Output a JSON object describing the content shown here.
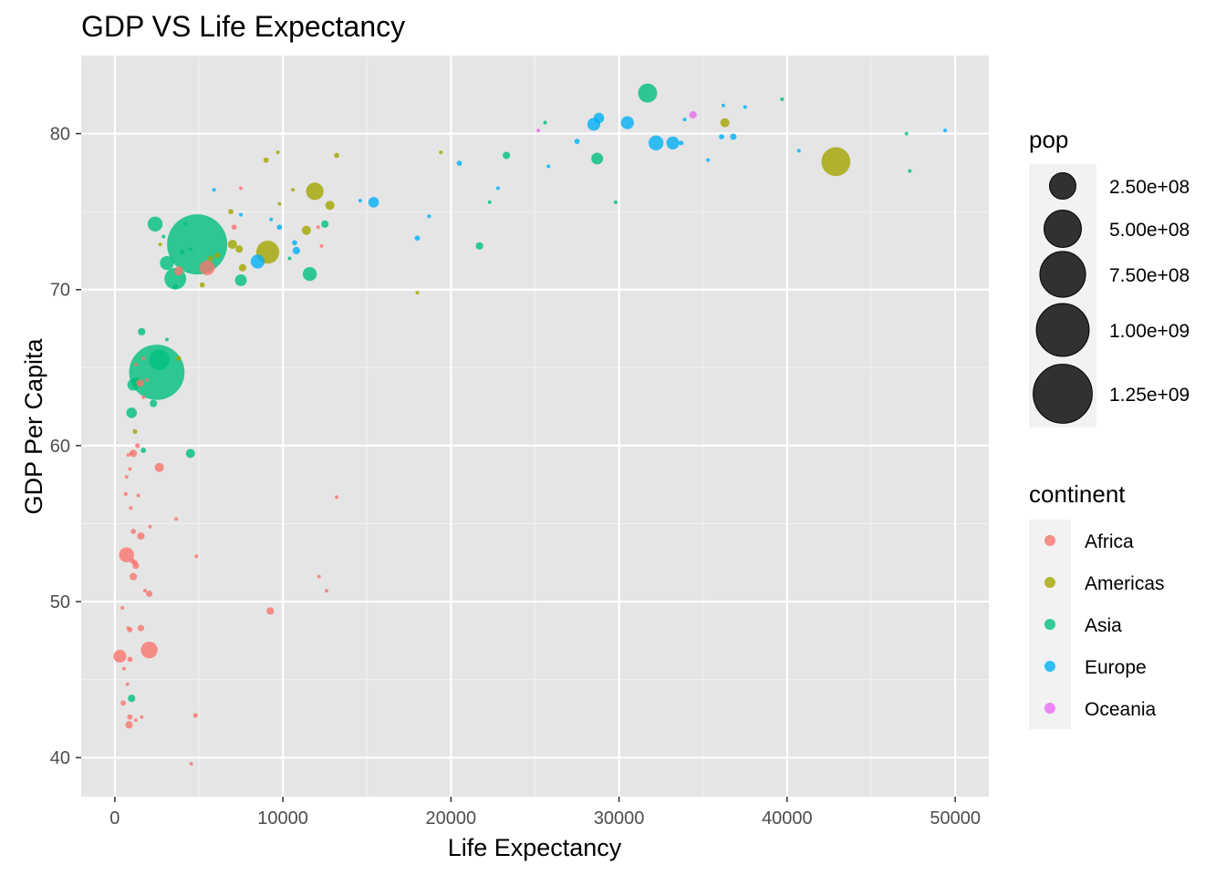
{
  "chart_data": {
    "type": "scatter",
    "title": "GDP VS Life Expectancy",
    "xlabel": "Life Expectancy",
    "ylabel": "GDP Per Capita",
    "xlim": [
      -2000,
      52000
    ],
    "ylim": [
      37.5,
      85
    ],
    "x_ticks": [
      0,
      10000,
      20000,
      30000,
      40000,
      50000
    ],
    "x_tick_labels": [
      "0",
      "10000",
      "20000",
      "30000",
      "40000",
      "50000"
    ],
    "y_ticks": [
      40,
      50,
      60,
      70,
      80
    ],
    "y_tick_labels": [
      "40",
      "50",
      "60",
      "70",
      "80"
    ],
    "grid": true,
    "background": "#e5e5e5",
    "point_opacity": 0.8,
    "legend_position": "right",
    "size_legend": {
      "title": "pop",
      "values": [
        250000000,
        500000000,
        750000000,
        1000000000,
        1250000000
      ],
      "labels": [
        "2.50e+08",
        "5.00e+08",
        "7.50e+08",
        "1.00e+09",
        "1.25e+09"
      ]
    },
    "color_legend": {
      "title": "continent",
      "entries": [
        {
          "name": "Africa",
          "color": "#F8766D"
        },
        {
          "name": "Americas",
          "color": "#A3A500"
        },
        {
          "name": "Asia",
          "color": "#00BF7D"
        },
        {
          "name": "Europe",
          "color": "#00B0F6"
        },
        {
          "name": "Oceania",
          "color": "#E76BF3"
        }
      ]
    },
    "series": [
      {
        "name": "Africa",
        "points": [
          [
            1250,
            65.2
          ],
          [
            1700,
            65.6
          ],
          [
            1900,
            64.2
          ],
          [
            1500,
            64.0
          ],
          [
            1700,
            63.1
          ],
          [
            3800,
            71.2
          ],
          [
            5500,
            71.4
          ],
          [
            7100,
            74.0
          ],
          [
            7500,
            76.5
          ],
          [
            12100,
            74.0
          ],
          [
            12300,
            72.8
          ],
          [
            1000,
            59.5
          ],
          [
            1350,
            60.0
          ],
          [
            800,
            59.4
          ],
          [
            1100,
            59.5
          ],
          [
            700,
            58.0
          ],
          [
            900,
            58.5
          ],
          [
            2650,
            58.6
          ],
          [
            650,
            56.9
          ],
          [
            1400,
            56.8
          ],
          [
            950,
            56.0
          ],
          [
            3650,
            55.3
          ],
          [
            13200,
            56.7
          ],
          [
            1100,
            54.5
          ],
          [
            1550,
            54.2
          ],
          [
            2100,
            54.8
          ],
          [
            700,
            53.0
          ],
          [
            1050,
            52.6
          ],
          [
            1200,
            52.5
          ],
          [
            1250,
            52.3
          ],
          [
            4850,
            52.9
          ],
          [
            1100,
            51.6
          ],
          [
            1800,
            50.7
          ],
          [
            2050,
            50.5
          ],
          [
            12150,
            51.6
          ],
          [
            12600,
            50.7
          ],
          [
            9250,
            49.4
          ],
          [
            450,
            49.6
          ],
          [
            800,
            48.3
          ],
          [
            900,
            48.2
          ],
          [
            1550,
            48.3
          ],
          [
            300,
            46.5
          ],
          [
            2050,
            46.9
          ],
          [
            900,
            46.3
          ],
          [
            550,
            45.7
          ],
          [
            750,
            44.7
          ],
          [
            500,
            43.5
          ],
          [
            900,
            42.6
          ],
          [
            1250,
            42.4
          ],
          [
            1600,
            42.6
          ],
          [
            850,
            42.1
          ],
          [
            4800,
            42.7
          ],
          [
            4550,
            39.6
          ]
        ],
        "pop": [
          3000000,
          3000000,
          2000000,
          20000000,
          5000000,
          30000000,
          80000000,
          10000000,
          1000000,
          3000000,
          1000000,
          2000000,
          8000000,
          3000000,
          20000000,
          5000000,
          3000000,
          30000000,
          5000000,
          5000000,
          5000000,
          3000000,
          2000000,
          10000000,
          20000000,
          2000000,
          80000000,
          10000000,
          10000000,
          15000000,
          2000000,
          20000000,
          5000000,
          15000000,
          1000000,
          1000000,
          20000000,
          5000000,
          5000000,
          10000000,
          15000000,
          60000000,
          100000000,
          10000000,
          2000000,
          3000000,
          10000000,
          10000000,
          5000000,
          2000000,
          20000000,
          8000000,
          1000000
        ]
      },
      {
        "name": "Americas",
        "points": [
          [
            9000,
            78.3
          ],
          [
            9700,
            78.8
          ],
          [
            13200,
            78.6
          ],
          [
            11900,
            76.3
          ],
          [
            10600,
            76.4
          ],
          [
            9800,
            75.5
          ],
          [
            12800,
            75.4
          ],
          [
            6900,
            75.0
          ],
          [
            11400,
            73.8
          ],
          [
            2700,
            72.9
          ],
          [
            7000,
            72.9
          ],
          [
            7400,
            72.6
          ],
          [
            9100,
            72.4
          ],
          [
            6100,
            72.2
          ],
          [
            5700,
            72.0
          ],
          [
            7600,
            71.4
          ],
          [
            5200,
            70.3
          ],
          [
            3800,
            65.6
          ],
          [
            1200,
            60.9
          ],
          [
            19400,
            78.8
          ],
          [
            18000,
            69.8
          ],
          [
            36300,
            80.7
          ],
          [
            42900,
            78.2
          ]
        ],
        "pop": [
          10000000,
          3000000,
          10000000,
          110000000,
          3000000,
          3000000,
          30000000,
          10000000,
          30000000,
          3000000,
          30000000,
          20000000,
          190000000,
          10000000,
          10000000,
          20000000,
          10000000,
          8000000,
          8000000,
          3000000,
          1000000,
          30000000,
          300000000
        ]
      },
      {
        "name": "Asia",
        "points": [
          [
            31700,
            82.6
          ],
          [
            39700,
            82.2
          ],
          [
            25600,
            80.7
          ],
          [
            47100,
            80.0
          ],
          [
            47300,
            77.6
          ],
          [
            23300,
            78.6
          ],
          [
            28700,
            78.4
          ],
          [
            29800,
            75.6
          ],
          [
            22300,
            75.6
          ],
          [
            21700,
            72.8
          ],
          [
            12500,
            74.2
          ],
          [
            11600,
            71.0
          ],
          [
            10400,
            72.0
          ],
          [
            2400,
            74.2
          ],
          [
            4200,
            74.2
          ],
          [
            2900,
            73.4
          ],
          [
            4900,
            72.9
          ],
          [
            4500,
            72.6
          ],
          [
            4000,
            72.4
          ],
          [
            3100,
            71.7
          ],
          [
            3600,
            70.7
          ],
          [
            3600,
            70.2
          ],
          [
            7500,
            70.6
          ],
          [
            1600,
            67.3
          ],
          [
            3100,
            66.8
          ],
          [
            2500,
            64.7
          ],
          [
            2650,
            65.5
          ],
          [
            1250,
            64.1
          ],
          [
            1100,
            63.9
          ],
          [
            2300,
            62.7
          ],
          [
            1000,
            62.1
          ],
          [
            1700,
            59.7
          ],
          [
            4500,
            59.5
          ],
          [
            1000,
            43.8
          ]
        ],
        "pop": [
          130000000,
          5000000,
          5000000,
          2000000,
          2000000,
          20000000,
          50000000,
          1000000,
          3000000,
          20000000,
          20000000,
          70000000,
          2000000,
          80000000,
          5000000,
          3000000,
          1300000000,
          3000000,
          8000000,
          70000000,
          170000000,
          10000000,
          50000000,
          20000000,
          3000000,
          1100000000,
          150000000,
          30000000,
          50000000,
          20000000,
          40000000,
          10000000,
          30000000,
          20000000
        ]
      },
      {
        "name": "Europe",
        "points": [
          [
            28800,
            81.0
          ],
          [
            28500,
            80.6
          ],
          [
            30500,
            80.7
          ],
          [
            33900,
            80.9
          ],
          [
            36200,
            81.8
          ],
          [
            37500,
            81.7
          ],
          [
            27500,
            79.5
          ],
          [
            32200,
            79.4
          ],
          [
            33200,
            79.4
          ],
          [
            33700,
            79.4
          ],
          [
            36100,
            79.8
          ],
          [
            36800,
            79.8
          ],
          [
            40700,
            78.9
          ],
          [
            49400,
            80.2
          ],
          [
            25800,
            77.9
          ],
          [
            20500,
            78.1
          ],
          [
            35300,
            78.3
          ],
          [
            14600,
            75.7
          ],
          [
            15400,
            75.6
          ],
          [
            22800,
            76.5
          ],
          [
            18000,
            73.3
          ],
          [
            18700,
            74.7
          ],
          [
            9800,
            74.0
          ],
          [
            9300,
            74.5
          ],
          [
            7500,
            74.8
          ],
          [
            5900,
            76.4
          ],
          [
            10700,
            73.0
          ],
          [
            10800,
            72.5
          ],
          [
            8500,
            71.8
          ]
        ],
        "pop": [
          40000000,
          60000000,
          60000000,
          5000000,
          500000,
          5000000,
          10000000,
          80000000,
          60000000,
          8000000,
          10000000,
          15000000,
          4000000,
          5000000,
          1000000,
          10000000,
          5000000,
          2000000,
          40000000,
          5000000,
          10000000,
          5000000,
          10000000,
          2000000,
          3000000,
          3000000,
          10000000,
          20000000,
          70000000
        ]
      },
      {
        "name": "Oceania",
        "points": [
          [
            34400,
            81.2
          ],
          [
            25200,
            80.2
          ]
        ],
        "pop": [
          20000000,
          4000000
        ]
      }
    ]
  }
}
